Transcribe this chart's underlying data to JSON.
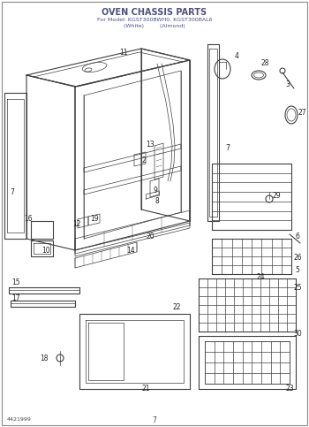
{
  "title_line1": "OVEN CHASSIS PARTS",
  "title_line2": "For Model: KGST300BWH0, KGST300BAL6",
  "title_line3": "(White)         (Almond)",
  "page_number": "7",
  "doc_number": "4421999",
  "background_color": "#ffffff",
  "line_color": "#404040",
  "title_color": "#505080",
  "figsize": [
    3.5,
    4.83
  ],
  "dpi": 100
}
